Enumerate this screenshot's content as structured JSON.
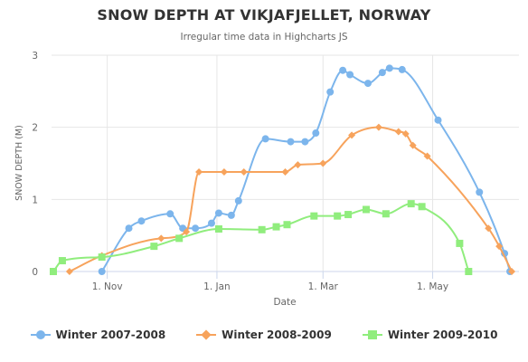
{
  "chart_data": {
    "type": "line",
    "title": "SNOW DEPTH AT VIKJAFJELLET, NORWAY",
    "subtitle": "Irregular time data in Highcharts JS",
    "xlabel": "Date",
    "ylabel": "SNOW DEPTH (M)",
    "x_ticks": [
      "1. Nov",
      "1. Jan",
      "1. Mar",
      "1. May"
    ],
    "x_tick_days": [
      31,
      92,
      151,
      212
    ],
    "x_range_days": [
      0,
      260
    ],
    "ylim": [
      0,
      3
    ],
    "y_ticks": [
      "0",
      "1",
      "2",
      "3"
    ],
    "grid": true,
    "legend_position": "bottom",
    "series": [
      {
        "name": "Winter 2007-2008",
        "color": "#7cb5ec",
        "marker": "circle",
        "points": [
          {
            "x": "1970-10-28",
            "y": 0
          },
          {
            "x": "1970-11-12",
            "y": 0.6
          },
          {
            "x": "1970-11-19",
            "y": 0.7
          },
          {
            "x": "1970-12-05",
            "y": 0.8
          },
          {
            "x": "1970-12-12",
            "y": 0.6
          },
          {
            "x": "1970-12-19",
            "y": 0.6
          },
          {
            "x": "1970-12-28",
            "y": 0.67
          },
          {
            "x": "1971-01-01",
            "y": 0.81
          },
          {
            "x": "1971-01-08",
            "y": 0.78
          },
          {
            "x": "1971-01-12",
            "y": 0.98
          },
          {
            "x": "1971-01-27",
            "y": 1.84
          },
          {
            "x": "1971-02-10",
            "y": 1.8
          },
          {
            "x": "1971-02-18",
            "y": 1.8
          },
          {
            "x": "1971-02-24",
            "y": 1.92
          },
          {
            "x": "1971-03-04",
            "y": 2.49
          },
          {
            "x": "1971-03-11",
            "y": 2.79
          },
          {
            "x": "1971-03-15",
            "y": 2.73
          },
          {
            "x": "1971-03-25",
            "y": 2.61
          },
          {
            "x": "1971-04-02",
            "y": 2.76
          },
          {
            "x": "1971-04-06",
            "y": 2.82
          },
          {
            "x": "1971-04-13",
            "y": 2.8
          },
          {
            "x": "1971-05-03",
            "y": 2.1
          },
          {
            "x": "1971-05-26",
            "y": 1.1
          },
          {
            "x": "1971-06-09",
            "y": 0.25
          },
          {
            "x": "1971-06-12",
            "y": 0
          }
        ]
      },
      {
        "name": "Winter 2008-2009",
        "color": "#f7a35c",
        "marker": "diamond",
        "points": [
          {
            "x": "1970-10-10",
            "y": 0
          },
          {
            "x": "1970-10-28",
            "y": 0.22
          },
          {
            "x": "1970-11-30",
            "y": 0.46
          },
          {
            "x": "1970-12-14",
            "y": 0.55
          },
          {
            "x": "1970-12-21",
            "y": 1.38
          },
          {
            "x": "1971-01-04",
            "y": 1.38
          },
          {
            "x": "1971-01-15",
            "y": 1.38
          },
          {
            "x": "1971-02-07",
            "y": 1.38
          },
          {
            "x": "1971-02-14",
            "y": 1.48
          },
          {
            "x": "1971-02-28",
            "y": 1.5
          },
          {
            "x": "1971-03-16",
            "y": 1.89
          },
          {
            "x": "1971-03-31",
            "y": 2.0
          },
          {
            "x": "1971-04-11",
            "y": 1.94
          },
          {
            "x": "1971-04-15",
            "y": 1.91
          },
          {
            "x": "1971-04-19",
            "y": 1.75
          },
          {
            "x": "1971-04-27",
            "y": 1.6
          },
          {
            "x": "1971-05-31",
            "y": 0.6
          },
          {
            "x": "1971-06-06",
            "y": 0.35
          },
          {
            "x": "1971-06-13",
            "y": 0
          }
        ]
      },
      {
        "name": "Winter 2009-2010",
        "color": "#90ed7d",
        "marker": "square",
        "points": [
          {
            "x": "1970-10-01",
            "y": 0
          },
          {
            "x": "1970-10-06",
            "y": 0.15
          },
          {
            "x": "1970-10-28",
            "y": 0.2
          },
          {
            "x": "1970-11-26",
            "y": 0.35
          },
          {
            "x": "1970-12-10",
            "y": 0.46
          },
          {
            "x": "1971-01-01",
            "y": 0.59
          },
          {
            "x": "1971-01-25",
            "y": 0.58
          },
          {
            "x": "1971-02-02",
            "y": 0.62
          },
          {
            "x": "1971-02-08",
            "y": 0.65
          },
          {
            "x": "1971-02-23",
            "y": 0.77
          },
          {
            "x": "1971-03-08",
            "y": 0.77
          },
          {
            "x": "1971-03-14",
            "y": 0.79
          },
          {
            "x": "1971-03-24",
            "y": 0.86
          },
          {
            "x": "1971-04-04",
            "y": 0.8
          },
          {
            "x": "1971-04-18",
            "y": 0.94
          },
          {
            "x": "1971-04-24",
            "y": 0.9
          },
          {
            "x": "1971-05-15",
            "y": 0.39
          },
          {
            "x": "1971-05-20",
            "y": 0
          }
        ]
      }
    ]
  }
}
